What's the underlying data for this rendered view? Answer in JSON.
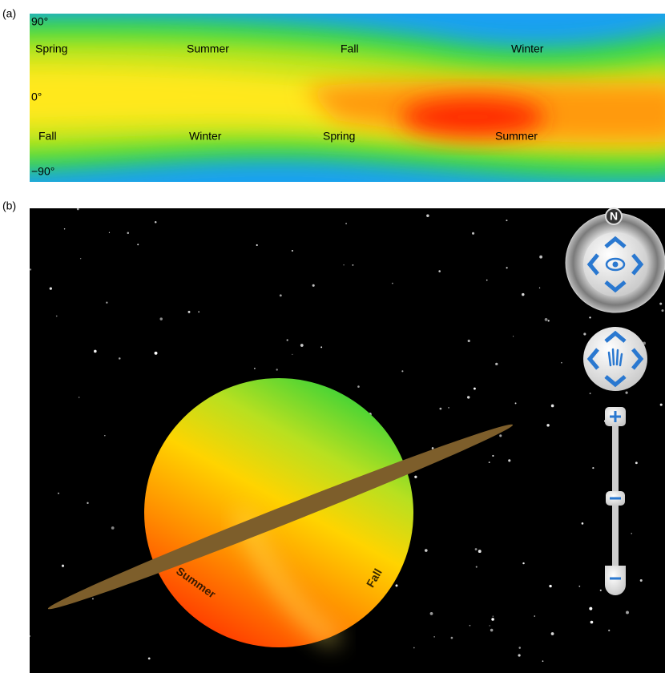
{
  "panel_a": {
    "label": "(a)",
    "axis_labels": [
      "90°",
      "0°",
      "−90°"
    ],
    "upper_seasons": [
      "Spring",
      "Summer",
      "Fall",
      "Winter"
    ],
    "lower_seasons": [
      "Fall",
      "Winter",
      "Spring",
      "Summer"
    ]
  },
  "panel_b": {
    "label": "(b)",
    "compass_label": "N",
    "globe_labels": [
      "Summer",
      "Fall"
    ]
  }
}
